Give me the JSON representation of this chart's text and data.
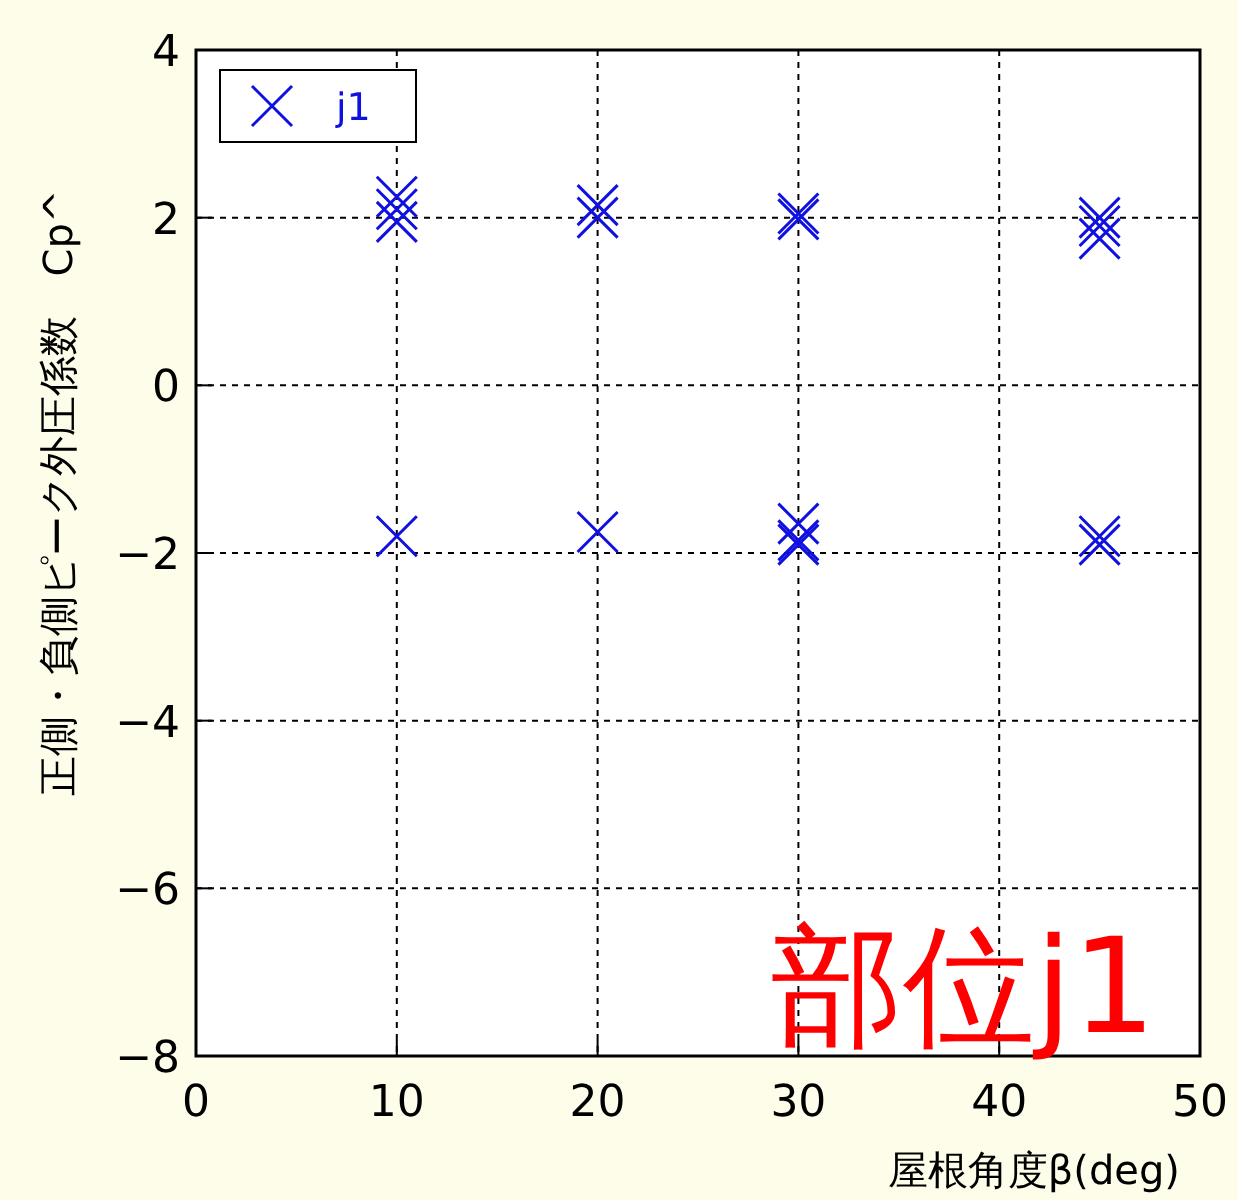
{
  "chart_data": {
    "type": "scatter",
    "xlabel": "屋根角度β(deg)",
    "ylabel": "正側・負側ピーク外圧係数　Cp^",
    "xlim": [
      0,
      50
    ],
    "xticks": [
      0,
      10,
      20,
      30,
      40,
      50
    ],
    "ylim": [
      -8,
      4
    ],
    "yticks": [
      -8,
      -6,
      -4,
      -2,
      0,
      2,
      4
    ],
    "grid": true,
    "legend": "top left",
    "marker": "cross",
    "series": [
      {
        "name": "j1",
        "color": "#1010e0",
        "x": [
          10,
          10,
          10,
          10,
          20,
          20,
          20,
          30,
          30,
          30,
          30,
          30,
          45,
          45,
          45,
          45,
          45
        ],
        "values": [
          2.25,
          2.1,
          1.95,
          -1.8,
          2.15,
          2.0,
          -1.75,
          2.05,
          1.98,
          -1.65,
          -1.85,
          -1.9,
          2.0,
          1.9,
          1.75,
          -1.8,
          -1.9
        ]
      }
    ],
    "annotations": [
      "部位j1"
    ]
  }
}
